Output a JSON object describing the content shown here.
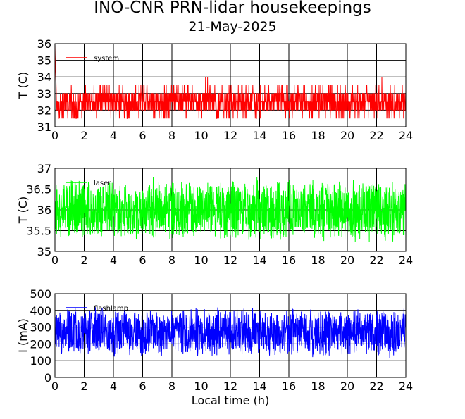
{
  "title": "INO-CNR PRN-lidar housekeepings",
  "subtitle": "21-May-2025",
  "chart_data": [
    {
      "type": "line",
      "ylabel": "T (C)",
      "xlabel": "",
      "xlim": [
        0,
        24
      ],
      "ylim": [
        31,
        36
      ],
      "xticks": [
        0,
        2,
        4,
        6,
        8,
        10,
        12,
        14,
        16,
        18,
        20,
        22,
        24
      ],
      "yticks": [
        31,
        32,
        33,
        34,
        35,
        36
      ],
      "grid": true,
      "legend_position": "top-left",
      "series": [
        {
          "name": "system",
          "color": "#ff0000",
          "x": [
            0.0,
            0.02,
            0.05,
            0.08,
            0.1,
            0.5,
            1.0,
            1.5,
            2.0,
            2.5,
            3.0,
            3.5,
            4.0,
            4.5,
            5.0,
            5.5,
            6.0,
            6.5,
            7.0,
            7.5,
            8.0,
            8.5,
            9.0,
            9.5,
            10.0,
            10.5,
            11.0,
            11.5,
            12.0,
            12.5,
            13.0,
            13.5,
            14.0,
            14.5,
            15.0,
            15.5,
            16.0,
            16.5,
            17.0,
            17.5,
            18.0,
            18.5,
            19.0,
            19.5,
            20.0,
            20.5,
            21.0,
            21.5,
            22.0,
            22.5,
            23.0,
            23.5,
            24.0
          ],
          "values": [
            35.9,
            35.0,
            34.3,
            33.5,
            32.5,
            32.3,
            32.5,
            32.0,
            32.5,
            32.5,
            32.3,
            32.6,
            32.4,
            32.5,
            32.3,
            32.5,
            32.6,
            32.4,
            32.5,
            32.3,
            32.6,
            32.5,
            32.4,
            32.5,
            32.4,
            32.6,
            32.5,
            32.3,
            32.5,
            32.6,
            32.4,
            32.5,
            32.3,
            32.5,
            32.6,
            32.5,
            32.4,
            32.5,
            32.6,
            32.3,
            32.5,
            32.5,
            32.6,
            32.4,
            32.5,
            32.3,
            32.5,
            32.6,
            32.4,
            32.5,
            32.5,
            32.3,
            32.5
          ],
          "noise_min": 31.5,
          "noise_max": 33.5
        }
      ]
    },
    {
      "type": "line",
      "ylabel": "T (C)",
      "xlabel": "",
      "xlim": [
        0,
        24
      ],
      "ylim": [
        35,
        37
      ],
      "xticks": [
        0,
        2,
        4,
        6,
        8,
        10,
        12,
        14,
        16,
        18,
        20,
        22,
        24
      ],
      "yticks": [
        35,
        35.5,
        36,
        36.5,
        37
      ],
      "grid": true,
      "legend_position": "top-left",
      "series": [
        {
          "name": "laser",
          "color": "#00ff00",
          "x": [
            0,
            2,
            4,
            6,
            8,
            10,
            12,
            14,
            16,
            18,
            20,
            22,
            24
          ],
          "values": [
            36.0,
            36.0,
            36.0,
            36.0,
            36.0,
            36.0,
            36.0,
            36.0,
            36.0,
            36.0,
            36.0,
            36.0,
            36.0
          ],
          "noise_min": 35.2,
          "noise_max": 36.8
        }
      ]
    },
    {
      "type": "line",
      "ylabel": "I (mA)",
      "xlabel": "Local time (h)",
      "xlim": [
        0,
        24
      ],
      "ylim": [
        0,
        500
      ],
      "xticks": [
        0,
        2,
        4,
        6,
        8,
        10,
        12,
        14,
        16,
        18,
        20,
        22,
        24
      ],
      "yticks": [
        0,
        100,
        200,
        300,
        400,
        500
      ],
      "grid": true,
      "legend_position": "top-left",
      "series": [
        {
          "name": "flashlamp",
          "color": "#0000ff",
          "x": [
            0,
            2,
            4,
            6,
            8,
            10,
            12,
            14,
            16,
            18,
            20,
            22,
            24
          ],
          "values": [
            270,
            270,
            270,
            270,
            270,
            270,
            270,
            270,
            270,
            270,
            270,
            270,
            270
          ],
          "noise_min": 110,
          "noise_max": 420
        }
      ]
    }
  ]
}
